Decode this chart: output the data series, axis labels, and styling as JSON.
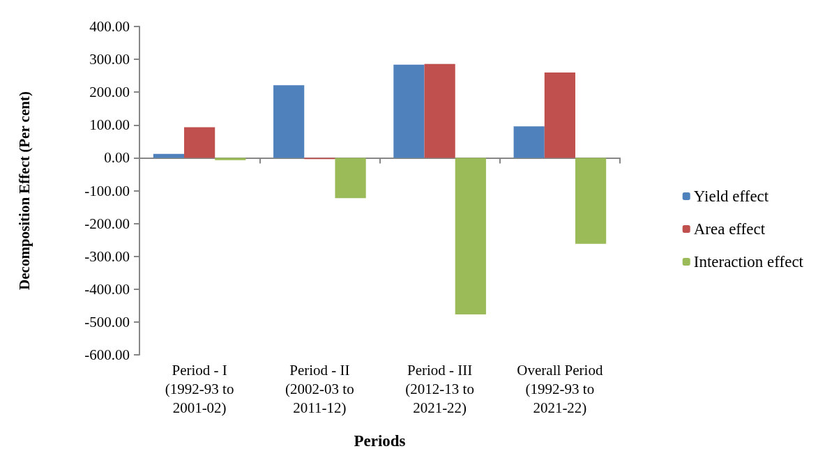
{
  "chart_data": {
    "type": "bar",
    "xlabel": "Periods",
    "ylabel": "Decomposition Effect (Per cent)",
    "categories": [
      "Period - I\n(1992-93 to\n2001-02)",
      "Period - II\n(2002-03 to\n2011-12)",
      "Period - III\n(2012-13 to\n2021-22)",
      "Overall Period\n(1992-93 to\n2021-22)"
    ],
    "series": [
      {
        "name": "Yield effect",
        "color": "#4f81bd",
        "values": [
          12,
          221,
          284,
          96
        ]
      },
      {
        "name": "Area effect",
        "color": "#c0504d",
        "values": [
          93,
          -4,
          286,
          260
        ]
      },
      {
        "name": "Interaction effect",
        "color": "#9bbb59",
        "values": [
          -7,
          -123,
          -477,
          -262
        ]
      }
    ],
    "ylim": [
      -600,
      400
    ],
    "yticks": [
      {
        "value": -600,
        "label": "-600.00"
      },
      {
        "value": -500,
        "label": "-500.00"
      },
      {
        "value": -400,
        "label": "-400.00"
      },
      {
        "value": -300,
        "label": "-300.00"
      },
      {
        "value": -200,
        "label": "-200.00"
      },
      {
        "value": -100,
        "label": "-100.00"
      },
      {
        "value": 0,
        "label": "0.00"
      },
      {
        "value": 100,
        "label": "100.00"
      },
      {
        "value": 200,
        "label": "200.00"
      },
      {
        "value": 300,
        "label": "300.00"
      },
      {
        "value": 400,
        "label": "400.00"
      }
    ],
    "legend": "right"
  }
}
